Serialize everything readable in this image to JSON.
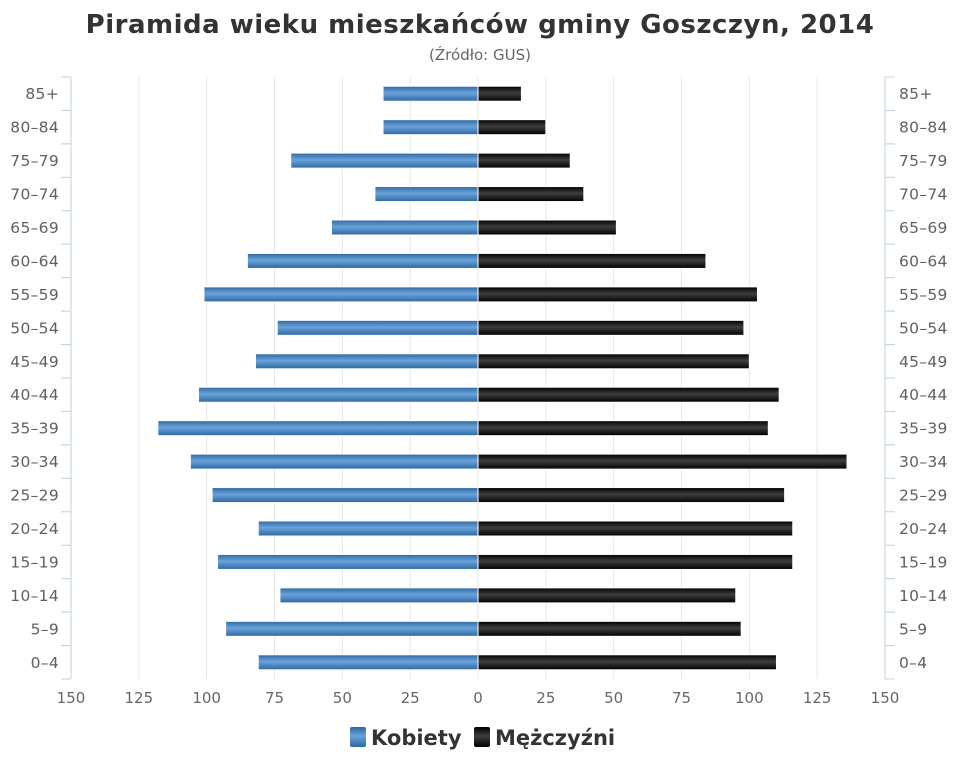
{
  "chart_data": {
    "type": "bar",
    "orientation": "horizontal-pyramid",
    "title": "Piramida wieku mieszkańców gminy Goszczyn, 2014",
    "subtitle": "(Źródło: GUS)",
    "categories": [
      "85+",
      "80–84",
      "75–79",
      "70–74",
      "65–69",
      "60–64",
      "55–59",
      "50–54",
      "45–49",
      "40–44",
      "35–39",
      "30–34",
      "25–29",
      "20–24",
      "15–19",
      "10–14",
      "5–9",
      "0–4"
    ],
    "series": [
      {
        "name": "Kobiety",
        "side": "left",
        "values": [
          35,
          35,
          69,
          38,
          54,
          85,
          101,
          74,
          82,
          103,
          118,
          106,
          98,
          81,
          96,
          73,
          93,
          81
        ]
      },
      {
        "name": "Mężczyźni",
        "side": "right",
        "values": [
          16,
          25,
          34,
          39,
          51,
          84,
          103,
          98,
          100,
          111,
          107,
          136,
          113,
          116,
          116,
          95,
          97,
          110
        ]
      }
    ],
    "xlim": [
      -150,
      150
    ],
    "x_ticks": [
      150,
      125,
      100,
      75,
      50,
      25,
      0,
      25,
      50,
      75,
      100,
      125,
      150
    ],
    "grid": true,
    "legend_position": "bottom-center",
    "colors": {
      "Kobiety": "#4a86c0",
      "Mężczyźni": "#151515"
    }
  }
}
